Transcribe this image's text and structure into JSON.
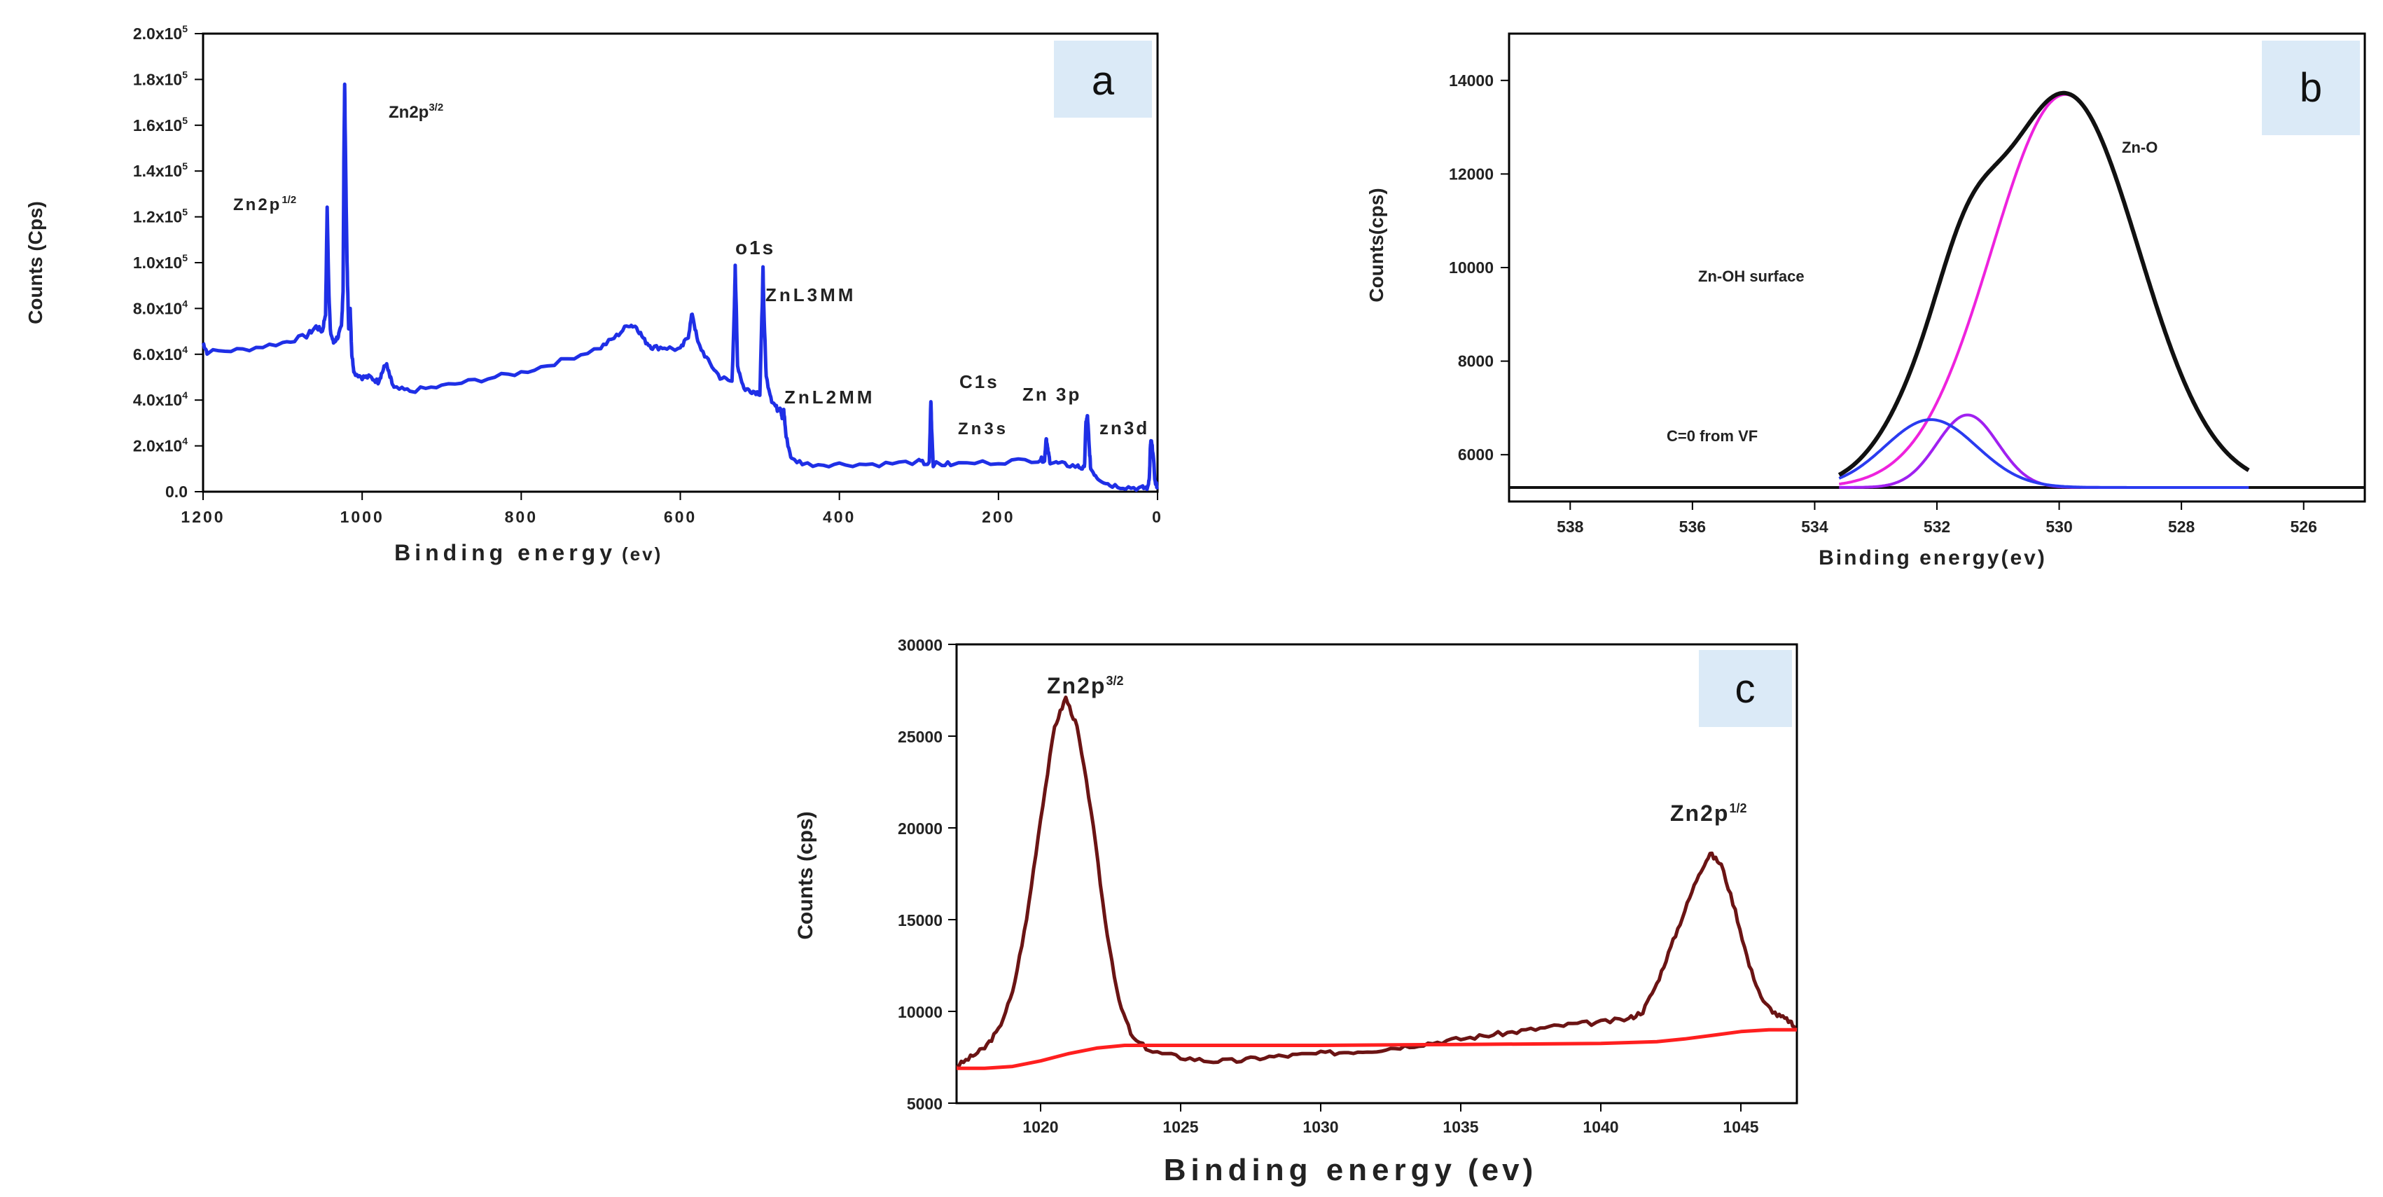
{
  "colors": {
    "survey_line": "#1f2fe6",
    "zno_fit": "#ee22dd",
    "znoh_fit": "#a020f0",
    "co_fit": "#2a3bf0",
    "envelope": "#111111",
    "zn2p_line": "#6b1414",
    "baseline": "#ff1f1f",
    "badge_bg": "#dbeaf7"
  },
  "chart_data": [
    {
      "id": "a",
      "type": "line",
      "panel_label": "a",
      "xlabel": "Binding energy",
      "xlabel_unit": "(ev)",
      "ylabel": "Counts (Cps)",
      "xlim": [
        1200,
        0
      ],
      "ylim": [
        0,
        200000
      ],
      "x_ticks": [
        "1200",
        "1000",
        "800",
        "600",
        "400",
        "200",
        "0"
      ],
      "y_ticks": [
        {
          "mant": "0.0",
          "exp": ""
        },
        {
          "mant": "2.0x10",
          "exp": "4"
        },
        {
          "mant": "4.0x10",
          "exp": "4"
        },
        {
          "mant": "6.0x10",
          "exp": "4"
        },
        {
          "mant": "8.0x10",
          "exp": "4"
        },
        {
          "mant": "1.0x10",
          "exp": "5"
        },
        {
          "mant": "1.2x10",
          "exp": "5"
        },
        {
          "mant": "1.4x10",
          "exp": "5"
        },
        {
          "mant": "1.6x10",
          "exp": "5"
        },
        {
          "mant": "1.8x10",
          "exp": "5"
        },
        {
          "mant": "2.0x10",
          "exp": "5"
        }
      ],
      "series": [
        {
          "name": "survey",
          "color_key": "survey_line",
          "points": [
            [
              1200,
              65000
            ],
            [
              1195,
              61000
            ],
            [
              1150,
              62000
            ],
            [
              1100,
              65000
            ],
            [
              1070,
              68000
            ],
            [
              1058,
              72000
            ],
            [
              1050,
              70000
            ],
            [
              1046,
              78000
            ],
            [
              1044,
              124000
            ],
            [
              1042,
              90000
            ],
            [
              1040,
              70000
            ],
            [
              1036,
              65000
            ],
            [
              1030,
              68000
            ],
            [
              1026,
              72000
            ],
            [
              1024,
              88000
            ],
            [
              1023,
              145000
            ],
            [
              1022,
              178000
            ],
            [
              1021,
              150000
            ],
            [
              1019,
              100000
            ],
            [
              1017,
              72000
            ],
            [
              1015,
              80000
            ],
            [
              1013,
              60000
            ],
            [
              1010,
              52000
            ],
            [
              1000,
              50000
            ],
            [
              990,
              50000
            ],
            [
              980,
              48000
            ],
            [
              975,
              52000
            ],
            [
              970,
              56000
            ],
            [
              965,
              50000
            ],
            [
              960,
              45000
            ],
            [
              940,
              44000
            ],
            [
              900,
              46000
            ],
            [
              850,
              49000
            ],
            [
              800,
              52000
            ],
            [
              750,
              57000
            ],
            [
              700,
              63000
            ],
            [
              680,
              68000
            ],
            [
              665,
              73000
            ],
            [
              655,
              72000
            ],
            [
              645,
              66000
            ],
            [
              635,
              63000
            ],
            [
              620,
              63000
            ],
            [
              600,
              62000
            ],
            [
              590,
              68000
            ],
            [
              585,
              78000
            ],
            [
              578,
              65000
            ],
            [
              565,
              57000
            ],
            [
              550,
              50000
            ],
            [
              535,
              48000
            ],
            [
              532,
              80000
            ],
            [
              531,
              98000
            ],
            [
              530,
              85000
            ],
            [
              528,
              55000
            ],
            [
              520,
              45000
            ],
            [
              510,
              44000
            ],
            [
              500,
              43000
            ],
            [
              497,
              82000
            ],
            [
              496,
              98000
            ],
            [
              495,
              80000
            ],
            [
              492,
              50000
            ],
            [
              485,
              40000
            ],
            [
              478,
              36000
            ],
            [
              474,
              37000
            ],
            [
              472,
              32000
            ],
            [
              470,
              36000
            ],
            [
              467,
              24000
            ],
            [
              460,
              14000
            ],
            [
              440,
              12000
            ],
            [
              400,
              12000
            ],
            [
              350,
              12000
            ],
            [
              300,
              13000
            ],
            [
              287,
              12000
            ],
            [
              285,
              40000
            ],
            [
              284,
              28000
            ],
            [
              282,
              12000
            ],
            [
              260,
              12000
            ],
            [
              200,
              13000
            ],
            [
              150,
              14000
            ],
            [
              142,
              14000
            ],
            [
              140,
              24000
            ],
            [
              138,
              18000
            ],
            [
              135,
              13000
            ],
            [
              120,
              12000
            ],
            [
              100,
              11000
            ],
            [
              92,
              10000
            ],
            [
              90,
              30000
            ],
            [
              88,
              33000
            ],
            [
              86,
              20000
            ],
            [
              84,
              10000
            ],
            [
              75,
              6000
            ],
            [
              60,
              3000
            ],
            [
              40,
              2000
            ],
            [
              20,
              1500
            ],
            [
              12,
              1800
            ],
            [
              10,
              8000
            ],
            [
              9,
              20000
            ],
            [
              8,
              22000
            ],
            [
              6,
              18000
            ],
            [
              3,
              4000
            ],
            [
              0,
              2000
            ]
          ]
        }
      ],
      "annotations": [
        {
          "key": "zn2p32",
          "text": "Zn2p",
          "sup": "3/2"
        },
        {
          "key": "zn2p12",
          "text": "Zn2p",
          "sup": "1/2"
        },
        {
          "key": "o1s",
          "text": "o1s",
          "sup": ""
        },
        {
          "key": "znl3mm",
          "text": "ZnL3MM",
          "sup": ""
        },
        {
          "key": "znl2mm",
          "text": "ZnL2MM",
          "sup": ""
        },
        {
          "key": "c1s",
          "text": "C1s",
          "sup": ""
        },
        {
          "key": "zn3s",
          "text": "Zn3s",
          "sup": ""
        },
        {
          "key": "zn3p",
          "text": "Zn 3p",
          "sup": ""
        },
        {
          "key": "zn3d",
          "text": "zn3d",
          "sup": ""
        }
      ]
    },
    {
      "id": "b",
      "type": "line",
      "panel_label": "b",
      "xlabel": "Binding energy(ev)",
      "ylabel": "Counts(cps)",
      "xlim": [
        539,
        525
      ],
      "ylim": [
        5000,
        15000
      ],
      "x_ticks": [
        "538",
        "536",
        "534",
        "532",
        "530",
        "528",
        "526"
      ],
      "y_ticks": [
        "6000",
        "8000",
        "10000",
        "12000",
        "14000"
      ],
      "baseline": 5300,
      "series": [
        {
          "name": "Zn-O",
          "type": "gauss",
          "center": 529.9,
          "amplitude": 8400,
          "sigma": 1.2,
          "color_key": "zno_fit"
        },
        {
          "name": "Zn-OH surface",
          "type": "gauss",
          "center": 531.5,
          "amplitude": 1550,
          "sigma": 0.5,
          "color_key": "znoh_fit"
        },
        {
          "name": "C=0 from VF",
          "type": "gauss",
          "center": 532.1,
          "amplitude": 1450,
          "sigma": 0.75,
          "color_key": "co_fit"
        },
        {
          "name": "envelope",
          "type": "sum",
          "color_key": "envelope"
        }
      ],
      "annotations": [
        {
          "key": "zno",
          "text": "Zn-O"
        },
        {
          "key": "znoh",
          "text": "Zn-OH surface"
        },
        {
          "key": "co",
          "text": "C=0 from VF"
        }
      ]
    },
    {
      "id": "c",
      "type": "line",
      "panel_label": "c",
      "xlabel": "Binding energy",
      "xlabel_unit": "(ev)",
      "ylabel": "Counts (cps)",
      "xlim": [
        1017,
        1047
      ],
      "ylim": [
        5000,
        30000
      ],
      "x_ticks": [
        "1020",
        "1025",
        "1030",
        "1035",
        "1040",
        "1045"
      ],
      "y_ticks": [
        "5000",
        "10000",
        "15000",
        "20000",
        "25000",
        "30000"
      ],
      "series": [
        {
          "name": "Zn2p spectrum",
          "color_key": "zn2p_line",
          "points": [
            [
              1017,
              7000
            ],
            [
              1017.5,
              7500
            ],
            [
              1018,
              8000
            ],
            [
              1018.5,
              9000
            ],
            [
              1019,
              11000
            ],
            [
              1019.5,
              15000
            ],
            [
              1020,
              20500
            ],
            [
              1020.5,
              25500
            ],
            [
              1020.9,
              27100
            ],
            [
              1021.3,
              25500
            ],
            [
              1021.8,
              21000
            ],
            [
              1022.3,
              15000
            ],
            [
              1022.8,
              10500
            ],
            [
              1023.3,
              8500
            ],
            [
              1024,
              7800
            ],
            [
              1025,
              7500
            ],
            [
              1026,
              7300
            ],
            [
              1027,
              7300
            ],
            [
              1028,
              7500
            ],
            [
              1029,
              7600
            ],
            [
              1030,
              7700
            ],
            [
              1031,
              7800
            ],
            [
              1032,
              7900
            ],
            [
              1033,
              8100
            ],
            [
              1034,
              8300
            ],
            [
              1035,
              8500
            ],
            [
              1036,
              8700
            ],
            [
              1037,
              8900
            ],
            [
              1038,
              9100
            ],
            [
              1039,
              9300
            ],
            [
              1040,
              9400
            ],
            [
              1041,
              9600
            ],
            [
              1041.5,
              10000
            ],
            [
              1042,
              11500
            ],
            [
              1042.5,
              13500
            ],
            [
              1043,
              15500
            ],
            [
              1043.5,
              17500
            ],
            [
              1043.9,
              18600
            ],
            [
              1044.3,
              18000
            ],
            [
              1044.8,
              15500
            ],
            [
              1045.3,
              12500
            ],
            [
              1045.8,
              10500
            ],
            [
              1046.3,
              9800
            ],
            [
              1046.7,
              9500
            ],
            [
              1047,
              9000
            ]
          ]
        },
        {
          "name": "background",
          "color_key": "baseline",
          "points": [
            [
              1017,
              6900
            ],
            [
              1018,
              6900
            ],
            [
              1019,
              7000
            ],
            [
              1020,
              7300
            ],
            [
              1021,
              7700
            ],
            [
              1022,
              8000
            ],
            [
              1023,
              8150
            ],
            [
              1025,
              8150
            ],
            [
              1030,
              8150
            ],
            [
              1035,
              8200
            ],
            [
              1040,
              8250
            ],
            [
              1042,
              8350
            ],
            [
              1043,
              8500
            ],
            [
              1044,
              8700
            ],
            [
              1045,
              8900
            ],
            [
              1046,
              9000
            ],
            [
              1047,
              9000
            ]
          ]
        }
      ],
      "annotations": [
        {
          "key": "zn2p32",
          "text": "Zn2p",
          "sup": "3/2"
        },
        {
          "key": "zn2p12",
          "text": "Zn2p",
          "sup": "1/2"
        }
      ]
    }
  ]
}
